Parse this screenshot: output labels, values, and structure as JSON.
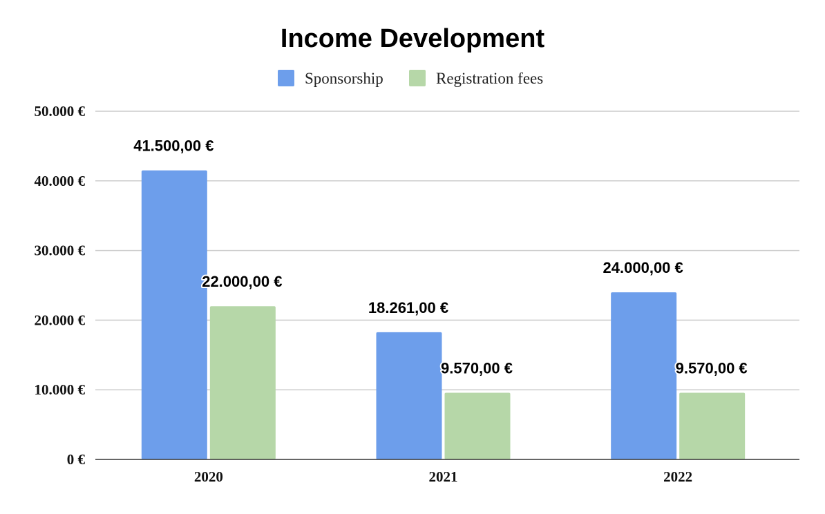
{
  "chart_data": {
    "type": "bar",
    "title": "Income Development",
    "categories": [
      "2020",
      "2021",
      "2022"
    ],
    "series": [
      {
        "name": "Sponsorship",
        "color": "#6d9eeb",
        "values": [
          41500,
          18261,
          24000
        ],
        "labels": [
          "41.500,00 €",
          "18.261,00 €",
          "24.000,00 €"
        ]
      },
      {
        "name": "Registration fees",
        "color": "#b6d7a8",
        "values": [
          22000,
          9570,
          9570
        ],
        "labels": [
          "22.000,00 €",
          "9.570,00 €",
          "9.570,00 €"
        ]
      }
    ],
    "ylim": [
      0,
      50000
    ],
    "yticks": [
      0,
      10000,
      20000,
      30000,
      40000,
      50000
    ],
    "ytick_labels": [
      "0 €",
      "10.000 €",
      "20.000 €",
      "30.000 €",
      "40.000 €",
      "50.000 €"
    ],
    "xlabel": "",
    "ylabel": "",
    "grid": true,
    "legend_position": "top-center"
  }
}
